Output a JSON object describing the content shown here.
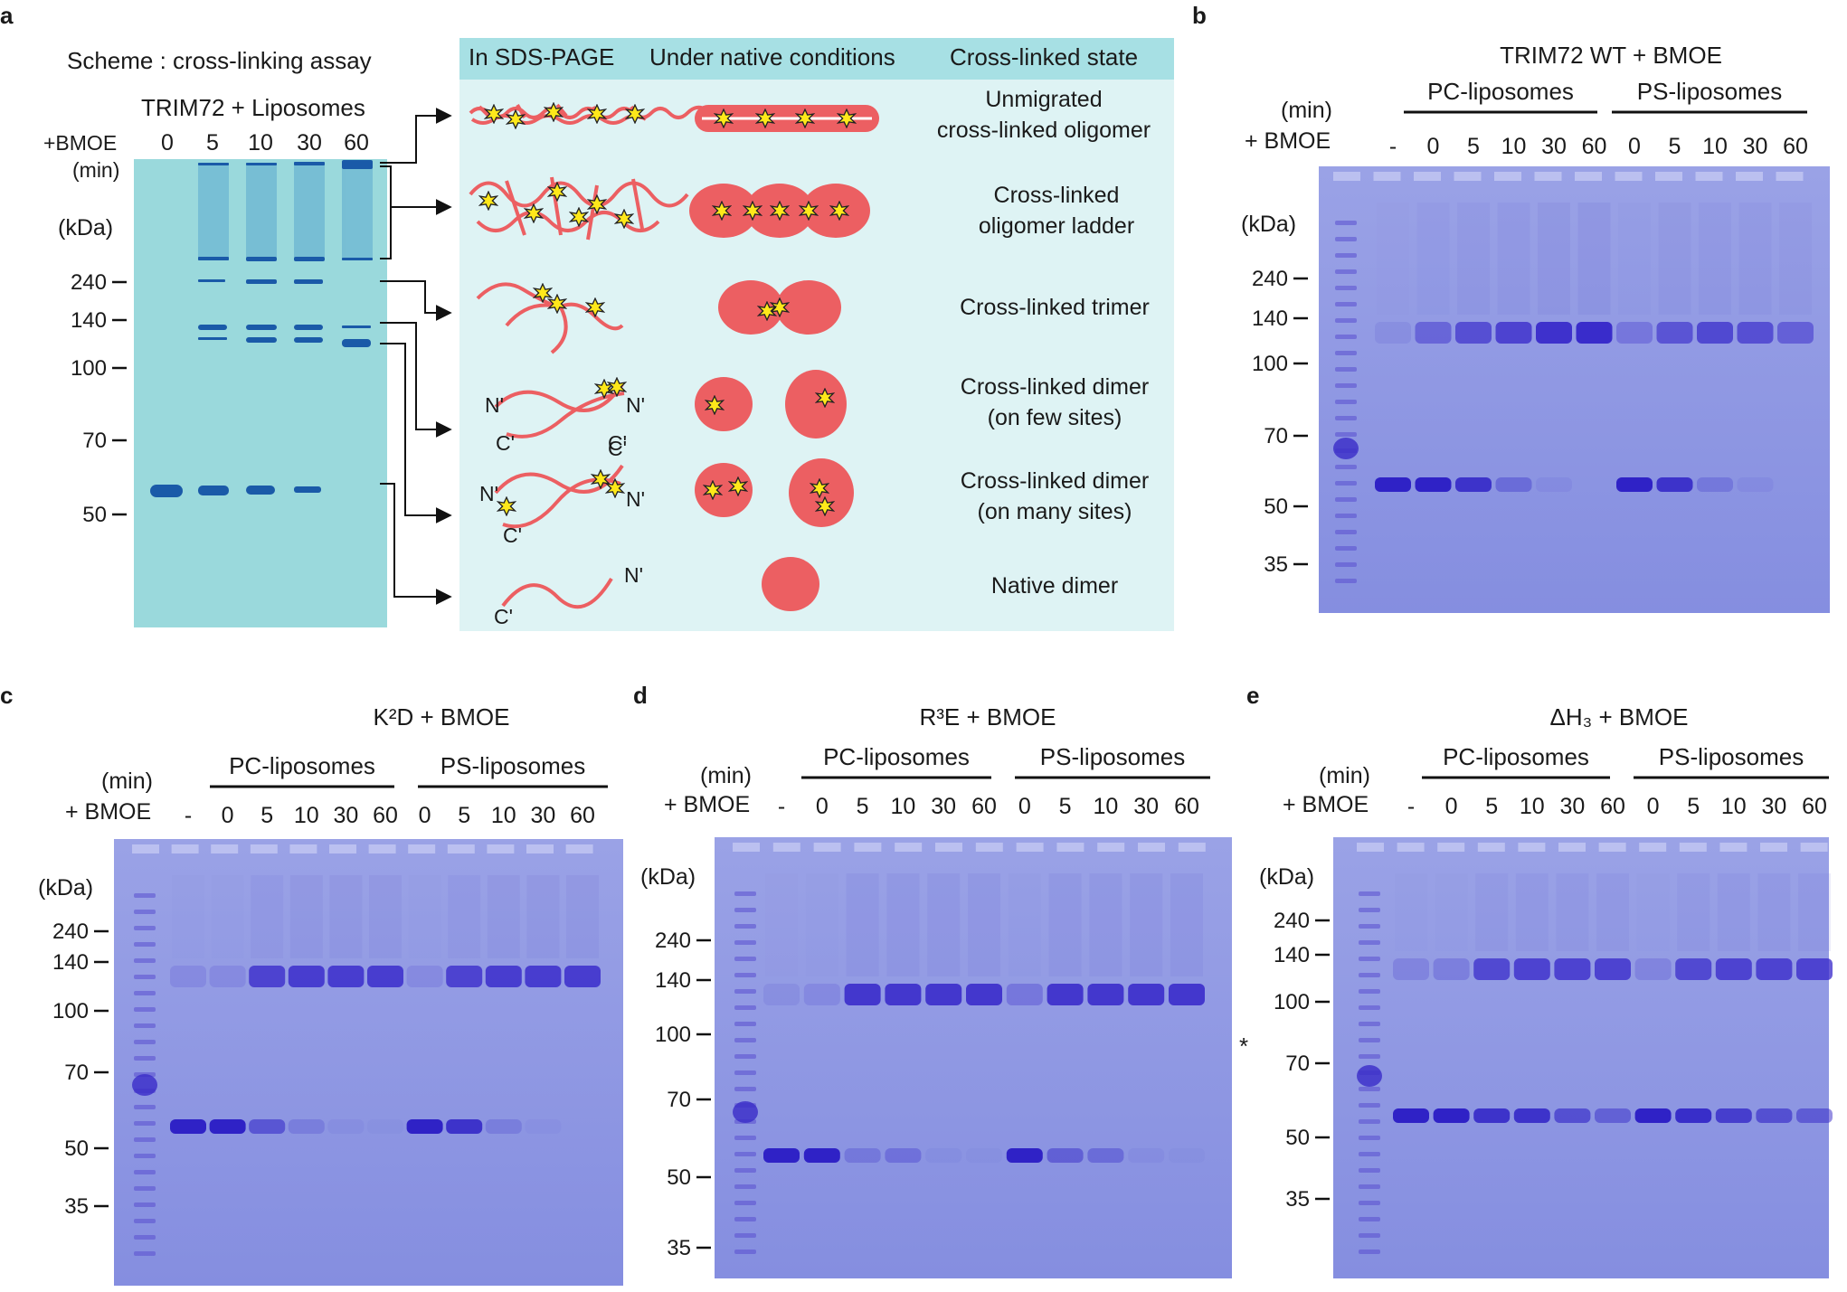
{
  "panel_a": {
    "label": "a",
    "scheme_title": "Scheme : cross-linking assay",
    "sample_title": "TRIM72 + Liposomes",
    "bmoe_label": "+BMOE",
    "min_label": "(min)",
    "kda_label": "(kDa)",
    "time_points": [
      "0",
      "5",
      "10",
      "30",
      "60"
    ],
    "mw_markers": [
      "240",
      "140",
      "100",
      "70",
      "50"
    ],
    "columns": [
      "In SDS-PAGE",
      "Under native conditions",
      "Cross-linked state"
    ],
    "states": [
      {
        "line1": "Unmigrated",
        "line2": "cross-linked oligomer"
      },
      {
        "line1": "Cross-linked",
        "line2": "oligomer ladder"
      },
      {
        "line1": "Cross-linked trimer",
        "line2": ""
      },
      {
        "line1": "Cross-linked dimer",
        "line2": "(on few sites)"
      },
      {
        "line1": "Cross-linked dimer",
        "line2": "(on many sites)"
      },
      {
        "line1": "Native dimer",
        "line2": ""
      }
    ],
    "terminus_labels": {
      "n": "N'",
      "c": "C'"
    }
  },
  "gels": [
    {
      "id": "b",
      "label": "b",
      "title": "TRIM72 WT + BMOE",
      "min_label": "(min)",
      "bmoe_label": "+ BMOE",
      "kda_label": "(kDa)",
      "group1": "PC-liposomes",
      "group2": "PS-liposomes",
      "lanes": [
        "-",
        "0",
        "5",
        "10",
        "30",
        "60",
        "0",
        "5",
        "10",
        "30",
        "60"
      ],
      "mw_markers": [
        "240",
        "140",
        "100",
        "70",
        "50",
        "35"
      ],
      "asterisk": ""
    },
    {
      "id": "c",
      "label": "c",
      "title": "K²D + BMOE",
      "min_label": "(min)",
      "bmoe_label": "+ BMOE",
      "kda_label": "(kDa)",
      "group1": "PC-liposomes",
      "group2": "PS-liposomes",
      "lanes": [
        "-",
        "0",
        "5",
        "10",
        "30",
        "60",
        "0",
        "5",
        "10",
        "30",
        "60"
      ],
      "mw_markers": [
        "240",
        "140",
        "100",
        "70",
        "50",
        "35"
      ],
      "asterisk": ""
    },
    {
      "id": "d",
      "label": "d",
      "title": "R³E + BMOE",
      "min_label": "(min)",
      "bmoe_label": "+ BMOE",
      "kda_label": "(kDa)",
      "group1": "PC-liposomes",
      "group2": "PS-liposomes",
      "lanes": [
        "-",
        "0",
        "5",
        "10",
        "30",
        "60",
        "0",
        "5",
        "10",
        "30",
        "60"
      ],
      "mw_markers": [
        "240",
        "140",
        "100",
        "70",
        "50",
        "35"
      ],
      "asterisk": "*"
    },
    {
      "id": "e",
      "label": "e",
      "title": "ΔH₃ + BMOE",
      "min_label": "(min)",
      "bmoe_label": "+ BMOE",
      "kda_label": "(kDa)",
      "group1": "PC-liposomes",
      "group2": "PS-liposomes",
      "lanes": [
        "-",
        "0",
        "5",
        "10",
        "30",
        "60",
        "0",
        "5",
        "10",
        "30",
        "60"
      ],
      "mw_markers": [
        "240",
        "140",
        "100",
        "70",
        "50",
        "35"
      ],
      "asterisk": ""
    }
  ],
  "colors": {
    "gel_blue": "#8a93e2",
    "band": "#3b2fd0",
    "schematic_gel": "#9ad9dc",
    "schematic_band": "#1a5aa8",
    "panel_bg": "#def3f4",
    "protein": "#ec5f62",
    "crosslink": "#ffe81a"
  }
}
